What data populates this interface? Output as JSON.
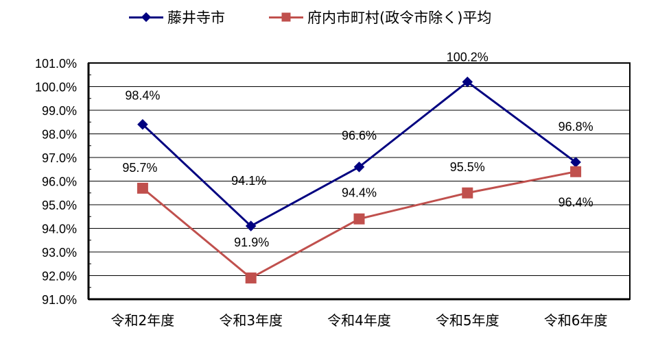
{
  "chart_data": {
    "type": "line",
    "title": "",
    "xlabel": "",
    "ylabel": "",
    "categories": [
      "令和2年度",
      "令和3年度",
      "令和4年度",
      "令和5年度",
      "令和6年度"
    ],
    "series": [
      {
        "name": "藤井寺市",
        "color": "#000080",
        "marker": "diamond",
        "values": [
          98.4,
          94.1,
          96.6,
          100.2,
          96.8
        ],
        "labels": [
          "98.4%",
          "94.1%",
          "96.6%",
          "100.2%",
          "96.8%"
        ]
      },
      {
        "name": "府内市町村(政令市除く)平均",
        "color": "#C0504D",
        "marker": "square",
        "values": [
          95.7,
          91.9,
          94.4,
          95.5,
          96.4
        ],
        "labels": [
          "95.7%",
          "91.9%",
          "94.4%",
          "95.5%",
          "96.4%"
        ]
      }
    ],
    "yticks": [
      "91.0%",
      "92.0%",
      "93.0%",
      "94.0%",
      "95.0%",
      "96.0%",
      "97.0%",
      "98.0%",
      "99.0%",
      "100.0%",
      "101.0%"
    ],
    "ylim": [
      91.0,
      101.0
    ],
    "grid": true,
    "legend_position": "top"
  },
  "legend": {
    "items": [
      {
        "label": "藤井寺市"
      },
      {
        "label": "府内市町村(政令市除く)平均"
      }
    ]
  }
}
